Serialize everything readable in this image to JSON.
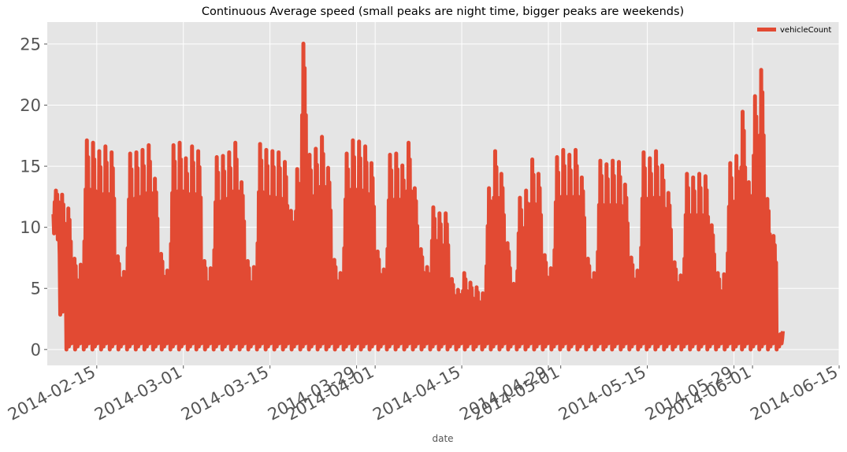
{
  "chart_data": {
    "type": "line",
    "title": "Continuous Average speed (small peaks are night time, bigger peaks are weekends)",
    "xlabel": "date",
    "ylabel": "",
    "x_range": [
      "2014-02-07",
      "2014-06-15"
    ],
    "ylim": [
      -1.3,
      26.8
    ],
    "x_ticks": [
      "2014-02-15",
      "2014-03-01",
      "2014-03-15",
      "2014-03-29",
      "2014-04-01",
      "2014-04-15",
      "2014-04-29",
      "2014-05-01",
      "2014-05-15",
      "2014-05-29",
      "2014-06-01",
      "2014-06-15"
    ],
    "y_ticks": [
      0,
      5,
      10,
      15,
      20,
      25
    ],
    "grid": true,
    "legend_position": "top-right",
    "series": [
      {
        "name": "vehicleCount",
        "color": "#e24a33",
        "data_start": "2014-02-08",
        "data_end": "2014-06-09",
        "daily_peaks": [
          13.1,
          12.9,
          11.8,
          7.6,
          7.1,
          17.5,
          17.3,
          16.6,
          17.0,
          16.5,
          7.8,
          6.5,
          16.4,
          16.5,
          16.7,
          17.1,
          14.3,
          8.0,
          6.6,
          17.1,
          17.3,
          16.0,
          17.0,
          16.6,
          7.4,
          6.8,
          16.1,
          16.2,
          16.5,
          17.3,
          14.0,
          7.4,
          6.9,
          17.2,
          16.7,
          16.6,
          16.5,
          15.7,
          11.6,
          15.1,
          25.6,
          16.3,
          16.8,
          17.8,
          15.2,
          7.5,
          6.4,
          16.4,
          17.5,
          17.4,
          17.0,
          15.6,
          8.2,
          6.7,
          16.3,
          16.4,
          15.4,
          17.3,
          13.5,
          8.4,
          6.9,
          11.9,
          11.4,
          11.4,
          5.9,
          5.0,
          6.4,
          5.6,
          5.2,
          4.7,
          13.5,
          16.6,
          14.7,
          8.9,
          5.5,
          12.7,
          13.3,
          15.9,
          14.7,
          7.9,
          6.8,
          16.1,
          16.7,
          16.3,
          16.7,
          14.4,
          7.6,
          6.4,
          15.8,
          15.5,
          15.8,
          15.7,
          13.8,
          7.7,
          6.6,
          16.5,
          16.0,
          16.6,
          15.4,
          13.1,
          7.3,
          6.2,
          14.7,
          14.4,
          14.7,
          14.5,
          10.4,
          6.4,
          6.3,
          15.6,
          16.2,
          19.9,
          14.0,
          21.2,
          23.4,
          12.6,
          9.5,
          1.2
        ],
        "daily_troughs": [
          9.0,
          2.6,
          0.0,
          0.0,
          0.0,
          0.0,
          0.0,
          0.0,
          0.0,
          0.0,
          0.0,
          0.0,
          0.0,
          0.0,
          0.0,
          0.0,
          0.0,
          0.0,
          0.0,
          0.0,
          0.0,
          0.0,
          0.0,
          0.0,
          0.0,
          0.0,
          0.0,
          0.0,
          0.0,
          0.0,
          0.0,
          0.0,
          0.0,
          0.0,
          0.0,
          0.0,
          0.0,
          0.0,
          0.0,
          0.0,
          0.0,
          0.0,
          0.0,
          0.0,
          0.0,
          0.0,
          0.0,
          0.0,
          0.0,
          0.0,
          0.0,
          0.0,
          0.0,
          0.0,
          0.0,
          0.0,
          0.0,
          0.0,
          0.0,
          0.0,
          0.0,
          0.0,
          0.0,
          0.0,
          0.0,
          0.0,
          0.0,
          0.0,
          0.0,
          0.0,
          0.0,
          0.0,
          0.0,
          0.0,
          0.0,
          0.0,
          0.0,
          0.0,
          0.0,
          0.0,
          0.0,
          0.0,
          0.0,
          0.0,
          0.0,
          0.0,
          0.0,
          0.0,
          0.0,
          0.0,
          0.0,
          0.0,
          0.0,
          0.0,
          0.0,
          0.0,
          0.0,
          0.0,
          0.0,
          0.0,
          0.0,
          0.0,
          0.0,
          0.0,
          0.0,
          0.0,
          0.0,
          0.0,
          0.0,
          0.0,
          0.0,
          0.0,
          0.0,
          0.0,
          0.0,
          0.0,
          0.0,
          0.0,
          0.0,
          0.5
        ]
      }
    ]
  },
  "colors": {
    "plot_background": "#e5e5e5",
    "gridline": "#ffffff",
    "series": "#e24a33"
  }
}
